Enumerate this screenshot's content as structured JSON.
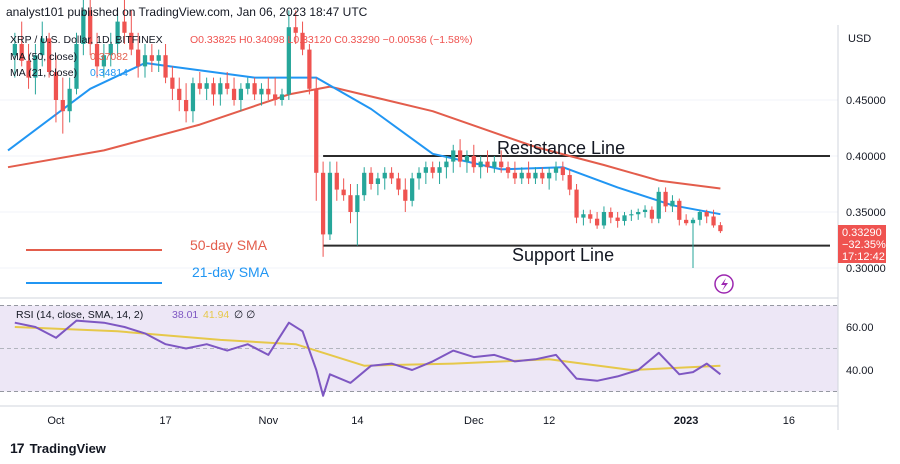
{
  "header": {
    "text": "analyst101 published on TradingView.com, Jan 06, 2023 18:47 UTC"
  },
  "footer": {
    "logo_glyph": "17",
    "brand": "TradingView"
  },
  "legend": {
    "symbol": "XRP / U.S. Dollar, 1D, BITFINEX",
    "ohlc": "O0.33825 H0.34098 L0.33120 C0.33290 −0.00536 (−1.58%)",
    "ma50": "MA (50, close)",
    "ma50_value": "0.37082",
    "ma21": "MA (21, close)",
    "ma21_value": "0.34814"
  },
  "annotations": {
    "resistance": "Resistance Line",
    "support": "Support Line",
    "sma50": "50-day SMA",
    "sma21": "21-day SMA"
  },
  "price_axis": {
    "unit": "USD",
    "ticks": [
      "0.45000",
      "0.40000",
      "0.35000",
      "0.30000"
    ],
    "tick_values": [
      0.45,
      0.4,
      0.35,
      0.3
    ],
    "last_price": "0.33290",
    "change_pct": "−32.35%",
    "countdown": "17:12:42"
  },
  "rsi": {
    "label": "RSI (14, close, SMA, 14, 2)",
    "value": "38.01",
    "sma_value": "41.94",
    "flags": "∅ ∅",
    "ticks": [
      "60.00",
      "40.00"
    ],
    "tick_values": [
      60,
      40
    ],
    "band_upper": 70,
    "band_lower": 30
  },
  "time_axis": {
    "labels": [
      "Oct",
      "17",
      "Nov",
      "14",
      "Dec",
      "12",
      "2023",
      "16"
    ]
  },
  "colors": {
    "up": "#26a69a",
    "down": "#ef5350",
    "sma50": "#e35d4c",
    "sma21": "#2196f3",
    "rsi": "#7e57c2",
    "rsi_sma": "#e6c84a",
    "rsi_band": "#ede7f6",
    "level": "#2b2b2b"
  },
  "chart_data": {
    "type": "candlestick",
    "title": "XRP / U.S. Dollar, 1D, BITFINEX",
    "ylim": [
      0.28,
      0.54
    ],
    "x_range": [
      "2022-09-24",
      "2023-01-22"
    ],
    "candles": [
      {
        "d": "2022-09-25",
        "o": 0.49,
        "h": 0.51,
        "l": 0.47,
        "c": 0.5
      },
      {
        "d": "2022-09-26",
        "o": 0.5,
        "h": 0.52,
        "l": 0.48,
        "c": 0.485
      },
      {
        "d": "2022-09-27",
        "o": 0.485,
        "h": 0.5,
        "l": 0.46,
        "c": 0.47
      },
      {
        "d": "2022-09-28",
        "o": 0.47,
        "h": 0.5,
        "l": 0.455,
        "c": 0.49
      },
      {
        "d": "2022-09-29",
        "o": 0.49,
        "h": 0.52,
        "l": 0.48,
        "c": 0.505
      },
      {
        "d": "2022-09-30",
        "o": 0.505,
        "h": 0.51,
        "l": 0.47,
        "c": 0.475
      },
      {
        "d": "2022-10-01",
        "o": 0.475,
        "h": 0.49,
        "l": 0.43,
        "c": 0.45
      },
      {
        "d": "2022-10-02",
        "o": 0.45,
        "h": 0.47,
        "l": 0.42,
        "c": 0.44
      },
      {
        "d": "2022-10-03",
        "o": 0.44,
        "h": 0.47,
        "l": 0.43,
        "c": 0.46
      },
      {
        "d": "2022-10-04",
        "o": 0.46,
        "h": 0.51,
        "l": 0.455,
        "c": 0.5
      },
      {
        "d": "2022-10-05",
        "o": 0.5,
        "h": 0.54,
        "l": 0.49,
        "c": 0.53
      },
      {
        "d": "2022-10-06",
        "o": 0.53,
        "h": 0.54,
        "l": 0.49,
        "c": 0.5
      },
      {
        "d": "2022-10-07",
        "o": 0.5,
        "h": 0.51,
        "l": 0.47,
        "c": 0.48
      },
      {
        "d": "2022-10-08",
        "o": 0.48,
        "h": 0.5,
        "l": 0.47,
        "c": 0.49
      },
      {
        "d": "2022-10-09",
        "o": 0.49,
        "h": 0.51,
        "l": 0.48,
        "c": 0.5
      },
      {
        "d": "2022-10-10",
        "o": 0.5,
        "h": 0.53,
        "l": 0.49,
        "c": 0.52
      },
      {
        "d": "2022-10-11",
        "o": 0.52,
        "h": 0.54,
        "l": 0.5,
        "c": 0.51
      },
      {
        "d": "2022-10-12",
        "o": 0.51,
        "h": 0.53,
        "l": 0.49,
        "c": 0.495
      },
      {
        "d": "2022-10-13",
        "o": 0.495,
        "h": 0.51,
        "l": 0.47,
        "c": 0.48
      },
      {
        "d": "2022-10-14",
        "o": 0.48,
        "h": 0.5,
        "l": 0.47,
        "c": 0.49
      },
      {
        "d": "2022-10-15",
        "o": 0.49,
        "h": 0.5,
        "l": 0.475,
        "c": 0.485
      },
      {
        "d": "2022-10-16",
        "o": 0.485,
        "h": 0.495,
        "l": 0.475,
        "c": 0.49
      },
      {
        "d": "2022-10-17",
        "o": 0.49,
        "h": 0.5,
        "l": 0.465,
        "c": 0.47
      },
      {
        "d": "2022-10-18",
        "o": 0.47,
        "h": 0.48,
        "l": 0.45,
        "c": 0.46
      },
      {
        "d": "2022-10-19",
        "o": 0.46,
        "h": 0.47,
        "l": 0.44,
        "c": 0.45
      },
      {
        "d": "2022-10-20",
        "o": 0.45,
        "h": 0.465,
        "l": 0.43,
        "c": 0.44
      },
      {
        "d": "2022-10-21",
        "o": 0.44,
        "h": 0.47,
        "l": 0.43,
        "c": 0.465
      },
      {
        "d": "2022-10-22",
        "o": 0.465,
        "h": 0.475,
        "l": 0.455,
        "c": 0.46
      },
      {
        "d": "2022-10-23",
        "o": 0.46,
        "h": 0.47,
        "l": 0.45,
        "c": 0.465
      },
      {
        "d": "2022-10-24",
        "o": 0.465,
        "h": 0.47,
        "l": 0.445,
        "c": 0.455
      },
      {
        "d": "2022-10-25",
        "o": 0.455,
        "h": 0.47,
        "l": 0.445,
        "c": 0.465
      },
      {
        "d": "2022-10-26",
        "o": 0.465,
        "h": 0.475,
        "l": 0.455,
        "c": 0.46
      },
      {
        "d": "2022-10-27",
        "o": 0.46,
        "h": 0.47,
        "l": 0.445,
        "c": 0.45
      },
      {
        "d": "2022-10-28",
        "o": 0.45,
        "h": 0.465,
        "l": 0.44,
        "c": 0.46
      },
      {
        "d": "2022-10-29",
        "o": 0.46,
        "h": 0.47,
        "l": 0.455,
        "c": 0.465
      },
      {
        "d": "2022-10-30",
        "o": 0.465,
        "h": 0.47,
        "l": 0.45,
        "c": 0.455
      },
      {
        "d": "2022-10-31",
        "o": 0.455,
        "h": 0.465,
        "l": 0.445,
        "c": 0.46
      },
      {
        "d": "2022-11-01",
        "o": 0.46,
        "h": 0.47,
        "l": 0.45,
        "c": 0.455
      },
      {
        "d": "2022-11-02",
        "o": 0.455,
        "h": 0.47,
        "l": 0.445,
        "c": 0.45
      },
      {
        "d": "2022-11-03",
        "o": 0.45,
        "h": 0.46,
        "l": 0.445,
        "c": 0.455
      },
      {
        "d": "2022-11-04",
        "o": 0.455,
        "h": 0.53,
        "l": 0.45,
        "c": 0.515
      },
      {
        "d": "2022-11-05",
        "o": 0.515,
        "h": 0.53,
        "l": 0.5,
        "c": 0.51
      },
      {
        "d": "2022-11-06",
        "o": 0.51,
        "h": 0.52,
        "l": 0.49,
        "c": 0.495
      },
      {
        "d": "2022-11-07",
        "o": 0.495,
        "h": 0.5,
        "l": 0.455,
        "c": 0.46
      },
      {
        "d": "2022-11-08",
        "o": 0.46,
        "h": 0.47,
        "l": 0.36,
        "c": 0.385
      },
      {
        "d": "2022-11-09",
        "o": 0.385,
        "h": 0.395,
        "l": 0.31,
        "c": 0.33
      },
      {
        "d": "2022-11-10",
        "o": 0.33,
        "h": 0.395,
        "l": 0.325,
        "c": 0.385
      },
      {
        "d": "2022-11-11",
        "o": 0.385,
        "h": 0.395,
        "l": 0.36,
        "c": 0.37
      },
      {
        "d": "2022-11-12",
        "o": 0.37,
        "h": 0.38,
        "l": 0.36,
        "c": 0.365
      },
      {
        "d": "2022-11-13",
        "o": 0.365,
        "h": 0.375,
        "l": 0.34,
        "c": 0.35
      },
      {
        "d": "2022-11-14",
        "o": 0.35,
        "h": 0.375,
        "l": 0.32,
        "c": 0.365
      },
      {
        "d": "2022-11-15",
        "o": 0.365,
        "h": 0.39,
        "l": 0.36,
        "c": 0.385
      },
      {
        "d": "2022-11-16",
        "o": 0.385,
        "h": 0.39,
        "l": 0.37,
        "c": 0.375
      },
      {
        "d": "2022-11-17",
        "o": 0.375,
        "h": 0.385,
        "l": 0.365,
        "c": 0.38
      },
      {
        "d": "2022-11-18",
        "o": 0.38,
        "h": 0.39,
        "l": 0.37,
        "c": 0.385
      },
      {
        "d": "2022-11-19",
        "o": 0.385,
        "h": 0.39,
        "l": 0.375,
        "c": 0.38
      },
      {
        "d": "2022-11-20",
        "o": 0.38,
        "h": 0.385,
        "l": 0.365,
        "c": 0.37
      },
      {
        "d": "2022-11-21",
        "o": 0.37,
        "h": 0.38,
        "l": 0.35,
        "c": 0.36
      },
      {
        "d": "2022-11-22",
        "o": 0.36,
        "h": 0.385,
        "l": 0.355,
        "c": 0.38
      },
      {
        "d": "2022-11-23",
        "o": 0.38,
        "h": 0.39,
        "l": 0.37,
        "c": 0.385
      },
      {
        "d": "2022-11-24",
        "o": 0.385,
        "h": 0.395,
        "l": 0.375,
        "c": 0.39
      },
      {
        "d": "2022-11-25",
        "o": 0.39,
        "h": 0.395,
        "l": 0.38,
        "c": 0.385
      },
      {
        "d": "2022-11-26",
        "o": 0.385,
        "h": 0.395,
        "l": 0.375,
        "c": 0.39
      },
      {
        "d": "2022-11-27",
        "o": 0.39,
        "h": 0.4,
        "l": 0.38,
        "c": 0.395
      },
      {
        "d": "2022-11-28",
        "o": 0.395,
        "h": 0.41,
        "l": 0.385,
        "c": 0.405
      },
      {
        "d": "2022-11-29",
        "o": 0.405,
        "h": 0.415,
        "l": 0.39,
        "c": 0.395
      },
      {
        "d": "2022-11-30",
        "o": 0.395,
        "h": 0.405,
        "l": 0.385,
        "c": 0.4
      },
      {
        "d": "2022-12-01",
        "o": 0.4,
        "h": 0.41,
        "l": 0.385,
        "c": 0.39
      },
      {
        "d": "2022-12-02",
        "o": 0.39,
        "h": 0.4,
        "l": 0.38,
        "c": 0.395
      },
      {
        "d": "2022-12-03",
        "o": 0.395,
        "h": 0.405,
        "l": 0.385,
        "c": 0.39
      },
      {
        "d": "2022-12-04",
        "o": 0.39,
        "h": 0.4,
        "l": 0.385,
        "c": 0.395
      },
      {
        "d": "2022-12-05",
        "o": 0.395,
        "h": 0.405,
        "l": 0.385,
        "c": 0.39
      },
      {
        "d": "2022-12-06",
        "o": 0.39,
        "h": 0.395,
        "l": 0.38,
        "c": 0.385
      },
      {
        "d": "2022-12-07",
        "o": 0.385,
        "h": 0.395,
        "l": 0.375,
        "c": 0.38
      },
      {
        "d": "2022-12-08",
        "o": 0.38,
        "h": 0.39,
        "l": 0.375,
        "c": 0.385
      },
      {
        "d": "2022-12-09",
        "o": 0.385,
        "h": 0.395,
        "l": 0.375,
        "c": 0.38
      },
      {
        "d": "2022-12-10",
        "o": 0.38,
        "h": 0.39,
        "l": 0.375,
        "c": 0.385
      },
      {
        "d": "2022-12-11",
        "o": 0.385,
        "h": 0.39,
        "l": 0.375,
        "c": 0.38
      },
      {
        "d": "2022-12-12",
        "o": 0.38,
        "h": 0.39,
        "l": 0.37,
        "c": 0.385
      },
      {
        "d": "2022-12-13",
        "o": 0.385,
        "h": 0.395,
        "l": 0.378,
        "c": 0.39
      },
      {
        "d": "2022-12-14",
        "o": 0.39,
        "h": 0.395,
        "l": 0.378,
        "c": 0.383
      },
      {
        "d": "2022-12-15",
        "o": 0.383,
        "h": 0.388,
        "l": 0.365,
        "c": 0.37
      },
      {
        "d": "2022-12-16",
        "o": 0.37,
        "h": 0.375,
        "l": 0.34,
        "c": 0.345
      },
      {
        "d": "2022-12-17",
        "o": 0.345,
        "h": 0.352,
        "l": 0.338,
        "c": 0.348
      },
      {
        "d": "2022-12-18",
        "o": 0.348,
        "h": 0.352,
        "l": 0.34,
        "c": 0.344
      },
      {
        "d": "2022-12-19",
        "o": 0.344,
        "h": 0.35,
        "l": 0.335,
        "c": 0.338
      },
      {
        "d": "2022-12-20",
        "o": 0.338,
        "h": 0.355,
        "l": 0.335,
        "c": 0.35
      },
      {
        "d": "2022-12-21",
        "o": 0.35,
        "h": 0.354,
        "l": 0.34,
        "c": 0.345
      },
      {
        "d": "2022-12-22",
        "o": 0.345,
        "h": 0.35,
        "l": 0.336,
        "c": 0.342
      },
      {
        "d": "2022-12-23",
        "o": 0.342,
        "h": 0.35,
        "l": 0.338,
        "c": 0.347
      },
      {
        "d": "2022-12-24",
        "o": 0.347,
        "h": 0.352,
        "l": 0.342,
        "c": 0.348
      },
      {
        "d": "2022-12-25",
        "o": 0.348,
        "h": 0.353,
        "l": 0.343,
        "c": 0.35
      },
      {
        "d": "2022-12-26",
        "o": 0.35,
        "h": 0.356,
        "l": 0.345,
        "c": 0.352
      },
      {
        "d": "2022-12-27",
        "o": 0.352,
        "h": 0.355,
        "l": 0.34,
        "c": 0.344
      },
      {
        "d": "2022-12-28",
        "o": 0.344,
        "h": 0.372,
        "l": 0.34,
        "c": 0.368
      },
      {
        "d": "2022-12-29",
        "o": 0.368,
        "h": 0.372,
        "l": 0.35,
        "c": 0.355
      },
      {
        "d": "2022-12-30",
        "o": 0.355,
        "h": 0.365,
        "l": 0.35,
        "c": 0.36
      },
      {
        "d": "2022-12-31",
        "o": 0.36,
        "h": 0.362,
        "l": 0.338,
        "c": 0.343
      },
      {
        "d": "2023-01-01",
        "o": 0.343,
        "h": 0.348,
        "l": 0.338,
        "c": 0.34
      },
      {
        "d": "2023-01-02",
        "o": 0.34,
        "h": 0.345,
        "l": 0.3,
        "c": 0.343
      },
      {
        "d": "2023-01-03",
        "o": 0.343,
        "h": 0.352,
        "l": 0.338,
        "c": 0.35
      },
      {
        "d": "2023-01-04",
        "o": 0.35,
        "h": 0.352,
        "l": 0.34,
        "c": 0.346
      },
      {
        "d": "2023-01-05",
        "o": 0.346,
        "h": 0.352,
        "l": 0.336,
        "c": 0.338
      },
      {
        "d": "2023-01-06",
        "o": 0.33825,
        "h": 0.34098,
        "l": 0.3312,
        "c": 0.3329
      }
    ],
    "sma50": {
      "name": "50-day SMA",
      "points": [
        {
          "d": "2022-09-24",
          "v": 0.39
        },
        {
          "d": "2022-10-08",
          "v": 0.405
        },
        {
          "d": "2022-10-22",
          "v": 0.428
        },
        {
          "d": "2022-11-04",
          "v": 0.455
        },
        {
          "d": "2022-11-10",
          "v": 0.462
        },
        {
          "d": "2022-11-25",
          "v": 0.44
        },
        {
          "d": "2022-12-10",
          "v": 0.408
        },
        {
          "d": "2022-12-20",
          "v": 0.392
        },
        {
          "d": "2022-12-28",
          "v": 0.378
        },
        {
          "d": "2023-01-06",
          "v": 0.371
        }
      ]
    },
    "sma21": {
      "name": "21-day SMA",
      "points": [
        {
          "d": "2022-09-24",
          "v": 0.405
        },
        {
          "d": "2022-10-06",
          "v": 0.46
        },
        {
          "d": "2022-10-14",
          "v": 0.483
        },
        {
          "d": "2022-10-30",
          "v": 0.47
        },
        {
          "d": "2022-11-08",
          "v": 0.47
        },
        {
          "d": "2022-11-16",
          "v": 0.442
        },
        {
          "d": "2022-11-25",
          "v": 0.402
        },
        {
          "d": "2022-12-05",
          "v": 0.388
        },
        {
          "d": "2022-12-14",
          "v": 0.39
        },
        {
          "d": "2022-12-22",
          "v": 0.372
        },
        {
          "d": "2022-12-30",
          "v": 0.356
        },
        {
          "d": "2023-01-06",
          "v": 0.348
        }
      ]
    },
    "resistance": {
      "name": "Resistance Line",
      "value": 0.4,
      "from": "2022-11-09",
      "to": "2023-01-22"
    },
    "support": {
      "name": "Support Line",
      "value": 0.32,
      "from": "2022-11-09",
      "to": "2023-01-22"
    },
    "rsi_series": [
      {
        "d": "2022-09-25",
        "v": 62
      },
      {
        "d": "2022-09-28",
        "v": 60
      },
      {
        "d": "2022-10-01",
        "v": 55
      },
      {
        "d": "2022-10-04",
        "v": 63
      },
      {
        "d": "2022-10-08",
        "v": 62
      },
      {
        "d": "2022-10-11",
        "v": 60
      },
      {
        "d": "2022-10-14",
        "v": 57
      },
      {
        "d": "2022-10-17",
        "v": 52
      },
      {
        "d": "2022-10-20",
        "v": 50
      },
      {
        "d": "2022-10-23",
        "v": 52
      },
      {
        "d": "2022-10-26",
        "v": 49
      },
      {
        "d": "2022-10-29",
        "v": 52
      },
      {
        "d": "2022-11-01",
        "v": 47
      },
      {
        "d": "2022-11-04",
        "v": 62
      },
      {
        "d": "2022-11-06",
        "v": 58
      },
      {
        "d": "2022-11-08",
        "v": 40
      },
      {
        "d": "2022-11-09",
        "v": 28
      },
      {
        "d": "2022-11-10",
        "v": 38
      },
      {
        "d": "2022-11-13",
        "v": 34
      },
      {
        "d": "2022-11-16",
        "v": 42
      },
      {
        "d": "2022-11-19",
        "v": 43
      },
      {
        "d": "2022-11-22",
        "v": 40
      },
      {
        "d": "2022-11-25",
        "v": 44
      },
      {
        "d": "2022-11-28",
        "v": 49
      },
      {
        "d": "2022-12-01",
        "v": 46
      },
      {
        "d": "2022-12-04",
        "v": 47
      },
      {
        "d": "2022-12-07",
        "v": 44
      },
      {
        "d": "2022-12-10",
        "v": 45
      },
      {
        "d": "2022-12-13",
        "v": 47
      },
      {
        "d": "2022-12-16",
        "v": 36
      },
      {
        "d": "2022-12-19",
        "v": 35
      },
      {
        "d": "2022-12-22",
        "v": 37
      },
      {
        "d": "2022-12-25",
        "v": 40
      },
      {
        "d": "2022-12-28",
        "v": 48
      },
      {
        "d": "2022-12-31",
        "v": 38
      },
      {
        "d": "2023-01-02",
        "v": 39
      },
      {
        "d": "2023-01-04",
        "v": 43
      },
      {
        "d": "2023-01-06",
        "v": 38
      }
    ],
    "rsi_sma_series": [
      {
        "d": "2022-09-25",
        "v": 60
      },
      {
        "d": "2022-10-10",
        "v": 58
      },
      {
        "d": "2022-10-25",
        "v": 54
      },
      {
        "d": "2022-11-05",
        "v": 52
      },
      {
        "d": "2022-11-15",
        "v": 42
      },
      {
        "d": "2022-11-28",
        "v": 43
      },
      {
        "d": "2022-12-12",
        "v": 45
      },
      {
        "d": "2022-12-24",
        "v": 40
      },
      {
        "d": "2023-01-06",
        "v": 41.94
      }
    ]
  }
}
